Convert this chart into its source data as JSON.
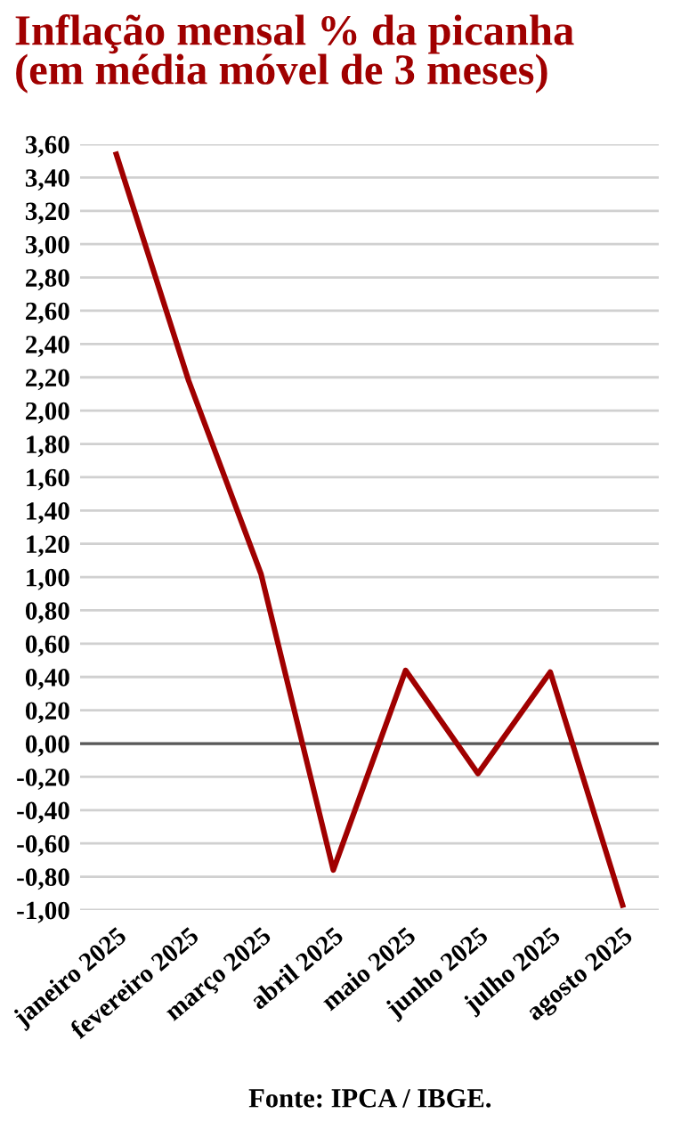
{
  "chart_data": {
    "type": "line",
    "title": "Inflação mensal % da picanha\n(em média móvel de 3 meses)",
    "categories": [
      "janeiro 2025",
      "fevereiro 2025",
      "março 2025",
      "abril 2025",
      "maio 2025",
      "junho 2025",
      "julho 2025",
      "agosto 2025"
    ],
    "series": [
      {
        "color": "#a00000",
        "values": [
          3.54,
          2.18,
          1.02,
          -0.76,
          0.44,
          -0.18,
          0.43,
          -0.97
        ]
      }
    ],
    "ylim": [
      -1.0,
      3.6
    ],
    "yticks": [
      {
        "value": -1.0,
        "label": "-1,00"
      },
      {
        "value": -0.8,
        "label": "-0,80"
      },
      {
        "value": -0.6,
        "label": "-0,60"
      },
      {
        "value": -0.4,
        "label": "-0,40"
      },
      {
        "value": -0.2,
        "label": "-0,20"
      },
      {
        "value": 0,
        "label": "0,00"
      },
      {
        "value": 0.2,
        "label": "0,20"
      },
      {
        "value": 0.4,
        "label": "0,40"
      },
      {
        "value": 0.6,
        "label": "0,60"
      },
      {
        "value": 0.8,
        "label": "0,80"
      },
      {
        "value": 1.0,
        "label": "1,00"
      },
      {
        "value": 1.2,
        "label": "1,20"
      },
      {
        "value": 1.4,
        "label": "1,40"
      },
      {
        "value": 1.6,
        "label": "1,60"
      },
      {
        "value": 1.8,
        "label": "1,80"
      },
      {
        "value": 2.0,
        "label": "2,00"
      },
      {
        "value": 2.2,
        "label": "2,20"
      },
      {
        "value": 2.4,
        "label": "2,40"
      },
      {
        "value": 2.6,
        "label": "2,60"
      },
      {
        "value": 2.8,
        "label": "2,80"
      },
      {
        "value": 3.0,
        "label": "3,00"
      },
      {
        "value": 3.2,
        "label": "3,20"
      },
      {
        "value": 3.4,
        "label": "3,40"
      },
      {
        "value": 3.6,
        "label": "3,60"
      }
    ],
    "grid": "y",
    "ref_lines": [
      {
        "axis": "y",
        "value": 0,
        "color": "#595959"
      }
    ],
    "annotations": [
      "Fonte: IPCA / IBGE."
    ]
  }
}
